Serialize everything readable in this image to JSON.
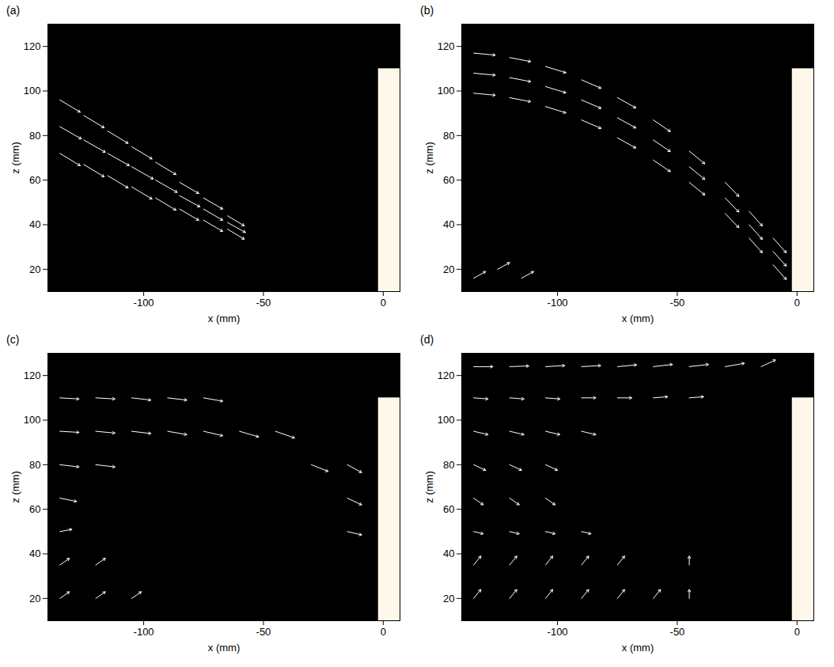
{
  "chart_data": [
    {
      "type": "vector_field",
      "title": "(a)",
      "x_label": "x (mm)",
      "y_label": "z (mm)",
      "xlim": [
        -140,
        7
      ],
      "ylim": [
        10,
        130
      ],
      "xticks": [
        -100,
        -50,
        0
      ],
      "yticks": [
        20,
        40,
        60,
        80,
        100,
        120
      ],
      "color": "white",
      "wall": {
        "x": [
          -2,
          7
        ],
        "z": [
          10,
          110
        ]
      },
      "vectors": {
        "x": [
          -135,
          -135,
          -135,
          -125,
          -125,
          -125,
          -115,
          -115,
          -115,
          -105,
          -105,
          -105,
          -95,
          -95,
          -95,
          -85,
          -85,
          -85,
          -75,
          -75,
          -75,
          -65,
          -65,
          -65
        ],
        "z": [
          72,
          84,
          96,
          67,
          78,
          89,
          62,
          72,
          82,
          57,
          66,
          75,
          52,
          60,
          68,
          47,
          53,
          59,
          42,
          47,
          52,
          38,
          41,
          44
        ],
        "dx": [
          8.5,
          9,
          8.5,
          8.5,
          9,
          8.5,
          8.5,
          9,
          8.5,
          8.5,
          9,
          8.5,
          8.5,
          9,
          8.5,
          8,
          8.5,
          8,
          8,
          8,
          8,
          7,
          7.5,
          7
        ],
        "dz": [
          -5.5,
          -5.5,
          -5.5,
          -5.5,
          -5.5,
          -5.5,
          -5.5,
          -5.5,
          -5.5,
          -5.5,
          -5.5,
          -5.5,
          -5.5,
          -5.5,
          -5.5,
          -5,
          -5,
          -5,
          -5,
          -5,
          -5,
          -4.5,
          -4.5,
          -4.5
        ]
      }
    },
    {
      "type": "vector_field",
      "title": "(b)",
      "x_label": "x (mm)",
      "y_label": "z (mm)",
      "xlim": [
        -140,
        7
      ],
      "ylim": [
        10,
        130
      ],
      "xticks": [
        -100,
        -50,
        0
      ],
      "yticks": [
        20,
        40,
        60,
        80,
        100,
        120
      ],
      "color": "white",
      "wall": {
        "x": [
          -2,
          7
        ],
        "z": [
          10,
          110
        ]
      },
      "vectors": {
        "x": [
          -135,
          -135,
          -135,
          -120,
          -120,
          -120,
          -105,
          -105,
          -105,
          -90,
          -90,
          -90,
          -75,
          -75,
          -75,
          -60,
          -60,
          -60,
          -45,
          -45,
          -45,
          -30,
          -30,
          -30,
          -20,
          -20,
          -20,
          -10,
          -10,
          -10,
          -135,
          -125,
          -115
        ],
        "z": [
          99,
          108,
          117,
          97,
          106,
          115,
          93,
          102,
          111,
          87,
          96,
          105,
          79,
          88,
          97,
          69,
          78,
          87,
          59,
          66,
          73,
          45,
          52,
          59,
          34,
          40,
          46,
          22,
          28,
          34,
          16,
          20,
          16
        ],
        "dx": [
          9,
          9,
          9,
          8.8,
          8.8,
          8.8,
          8.5,
          8.5,
          8.5,
          8.2,
          8.2,
          8.2,
          7.7,
          7.7,
          7.7,
          7.1,
          7.1,
          7.1,
          6.5,
          6.5,
          6.5,
          5.7,
          5.7,
          5.7,
          5.5,
          5.5,
          5.5,
          5.5,
          5.5,
          5.5,
          5,
          5,
          5
        ],
        "dz": [
          -0.9,
          -0.9,
          -0.9,
          -1.8,
          -1.8,
          -1.8,
          -2.8,
          -2.8,
          -2.8,
          -3.8,
          -3.8,
          -3.8,
          -4.6,
          -4.6,
          -4.6,
          -5.2,
          -5.2,
          -5.2,
          -5.7,
          -5.7,
          -5.7,
          -6.3,
          -6.3,
          -6.3,
          -6.6,
          -6.6,
          -6.6,
          -6.6,
          -6.6,
          -6.6,
          3,
          3,
          3
        ]
      }
    },
    {
      "type": "vector_field",
      "title": "(c)",
      "x_label": "x (mm)",
      "y_label": "z (mm)",
      "xlim": [
        -140,
        7
      ],
      "ylim": [
        10,
        130
      ],
      "xticks": [
        -100,
        -50,
        0
      ],
      "yticks": [
        20,
        40,
        60,
        80,
        100,
        120
      ],
      "color": "white",
      "wall": {
        "x": [
          -2,
          7
        ],
        "z": [
          10,
          110
        ]
      },
      "vectors": {
        "x": [
          -135,
          -120,
          -105,
          -90,
          -75,
          -135,
          -120,
          -105,
          -90,
          -75,
          -60,
          -45,
          -135,
          -120,
          -30,
          -15,
          -135,
          -15,
          -135,
          -15,
          -135,
          -120,
          -135,
          -120,
          -105
        ],
        "z": [
          110,
          110,
          110,
          110,
          110,
          95,
          95,
          95,
          95,
          95,
          95,
          95,
          80,
          80,
          80,
          80,
          65,
          65,
          50,
          50,
          35,
          35,
          20,
          20,
          20
        ],
        "dx": [
          8,
          8,
          8,
          8,
          8,
          8,
          8,
          8,
          8,
          8,
          8,
          8,
          8,
          8,
          7,
          6,
          7,
          6,
          5,
          6,
          4,
          4,
          4,
          4,
          4
        ],
        "dz": [
          -0.5,
          -0.5,
          -1,
          -1,
          -1.5,
          -0.5,
          -0.8,
          -1,
          -1.5,
          -2,
          -2.5,
          -3,
          -1,
          -1,
          -3,
          -3.5,
          -1.5,
          -3,
          1,
          -1.5,
          3,
          3,
          3,
          3,
          3
        ]
      }
    },
    {
      "type": "vector_field",
      "title": "(d)",
      "x_label": "x (mm)",
      "y_label": "z (mm)",
      "xlim": [
        -140,
        7
      ],
      "ylim": [
        10,
        130
      ],
      "xticks": [
        -100,
        -50,
        0
      ],
      "yticks": [
        20,
        40,
        60,
        80,
        100,
        120
      ],
      "color": "white",
      "wall": {
        "x": [
          -2,
          7
        ],
        "z": [
          10,
          110
        ]
      },
      "vectors": {
        "x": [
          -135,
          -120,
          -105,
          -90,
          -75,
          -60,
          -45,
          -30,
          -15,
          -135,
          -120,
          -105,
          -90,
          -75,
          -60,
          -45,
          -135,
          -120,
          -105,
          -90,
          -135,
          -120,
          -105,
          -135,
          -120,
          -105,
          -135,
          -120,
          -105,
          -90,
          -135,
          -120,
          -105,
          -90,
          -75,
          -45,
          -135,
          -120,
          -105,
          -90,
          -75,
          -60,
          -45
        ],
        "z": [
          124,
          124,
          124,
          124,
          124,
          124,
          124,
          124,
          124,
          110,
          110,
          110,
          110,
          110,
          110,
          110,
          95,
          95,
          95,
          95,
          80,
          80,
          80,
          65,
          65,
          65,
          50,
          50,
          50,
          50,
          35,
          35,
          35,
          35,
          35,
          35,
          20,
          20,
          20,
          20,
          20,
          20,
          20
        ],
        "dx": [
          8,
          8,
          8,
          8,
          8,
          8,
          8,
          8,
          6,
          6,
          6,
          6,
          6,
          6,
          6,
          6,
          6,
          6,
          6,
          6,
          5,
          5,
          5,
          4,
          4,
          4,
          4,
          4,
          4,
          4,
          3,
          3,
          3,
          3,
          3,
          0,
          3,
          3,
          3,
          3,
          3,
          3,
          0
        ],
        "dz": [
          0,
          0.3,
          0.5,
          0.5,
          0.8,
          1,
          1,
          1.5,
          3,
          -0.5,
          -0.5,
          -0.5,
          0,
          0,
          0.5,
          0.5,
          -1.5,
          -1.5,
          -1.5,
          -1.5,
          -2.5,
          -2.5,
          -2.5,
          -3,
          -3,
          -3,
          -1,
          -1,
          -1,
          -1,
          4,
          4,
          4,
          4,
          4,
          4,
          4,
          4,
          4,
          4,
          4,
          4,
          4
        ]
      }
    }
  ]
}
